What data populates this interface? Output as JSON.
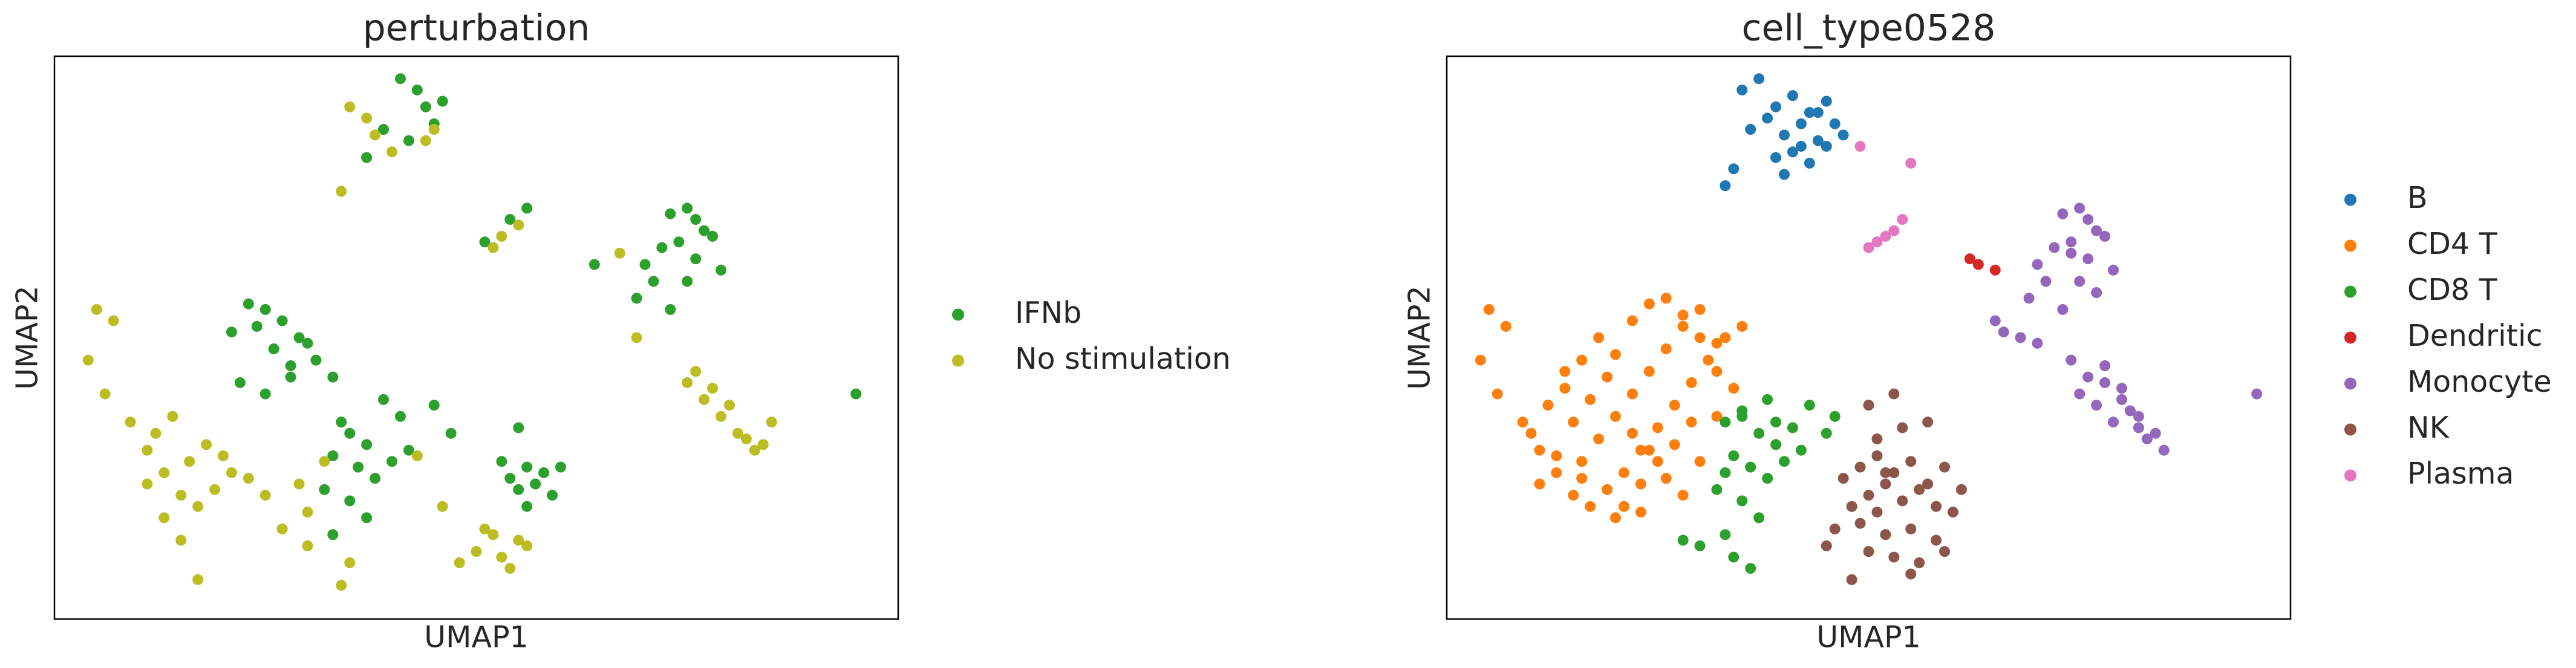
{
  "chart_data": [
    {
      "type": "scatter",
      "title": "perturbation",
      "xlabel": "UMAP1",
      "ylabel": "UMAP2",
      "xlim": [
        0,
        10
      ],
      "ylim": [
        0,
        10
      ],
      "grid": false,
      "legend": "right",
      "series": [
        {
          "name": "IFNb",
          "color": "#2ca02c",
          "x": [
            4.1,
            4.3,
            4.4,
            4.6,
            3.9,
            4.2,
            4.5,
            3.7,
            5.4,
            5.6,
            5.1,
            6.4,
            7.3,
            7.5,
            7.6,
            7.7,
            7.4,
            7.2,
            7.0,
            7.6,
            7.8,
            7.1,
            6.9,
            7.5,
            7.3,
            7.9,
            2.3,
            2.5,
            2.7,
            2.9,
            3.1,
            3.3,
            2.1,
            2.4,
            2.6,
            2.8,
            3.0,
            2.2,
            2.5,
            2.8,
            3.4,
            3.5,
            3.7,
            3.3,
            3.6,
            3.8,
            4.0,
            4.2,
            3.2,
            3.5,
            3.7,
            3.3,
            5.4,
            5.6,
            5.8,
            5.5,
            5.7,
            5.9,
            5.3,
            5.6,
            6.0,
            5.5,
            4.1,
            4.5,
            4.7,
            3.9,
            9.5
          ],
          "values": [
            9.6,
            9.4,
            9.1,
            9.2,
            8.7,
            8.5,
            8.8,
            8.2,
            7.1,
            7.3,
            6.7,
            6.3,
            7.2,
            7.3,
            7.1,
            6.9,
            6.7,
            6.6,
            6.3,
            6.4,
            6.8,
            6.0,
            5.7,
            6.0,
            5.5,
            6.2,
            5.6,
            5.5,
            5.3,
            5.0,
            4.6,
            4.3,
            5.1,
            5.2,
            4.8,
            4.5,
            4.9,
            4.2,
            4.0,
            4.3,
            3.5,
            3.3,
            3.1,
            2.9,
            2.7,
            2.5,
            2.8,
            3.0,
            2.3,
            2.1,
            1.8,
            1.5,
            2.5,
            2.7,
            2.6,
            2.3,
            2.4,
            2.2,
            2.8,
            2.0,
            2.7,
            3.4,
            3.6,
            3.8,
            3.3,
            3.9,
            4.0
          ]
        },
        {
          "name": "No stimulation",
          "color": "#bcbd22",
          "x": [
            3.5,
            3.7,
            3.8,
            4.0,
            4.4,
            4.5,
            3.4,
            5.2,
            5.3,
            5.5,
            6.7,
            6.9,
            7.5,
            7.7,
            7.9,
            8.1,
            8.3,
            8.5,
            7.8,
            8.0,
            8.2,
            7.6,
            8.4,
            0.5,
            0.7,
            0.4,
            0.6,
            0.9,
            1.1,
            1.3,
            1.5,
            1.7,
            1.9,
            2.1,
            1.2,
            1.4,
            1.6,
            1.8,
            2.0,
            1.1,
            1.3,
            1.5,
            1.7,
            2.3,
            2.5,
            2.7,
            3.0,
            3.2,
            4.8,
            5.0,
            5.2,
            5.4,
            5.6,
            5.1,
            5.3,
            5.5,
            3.4,
            3.5,
            3.0,
            2.9,
            4.3,
            4.6
          ],
          "values": [
            9.1,
            8.9,
            8.6,
            8.3,
            8.5,
            8.7,
            7.6,
            6.6,
            6.8,
            7.0,
            6.5,
            5.0,
            4.2,
            3.9,
            3.6,
            3.3,
            3.0,
            3.5,
            4.1,
            3.8,
            3.2,
            4.4,
            3.1,
            5.5,
            5.3,
            4.6,
            4.0,
            3.5,
            3.0,
            2.6,
            2.2,
            2.0,
            2.3,
            2.6,
            3.3,
            3.6,
            2.8,
            3.1,
            2.9,
            2.4,
            1.8,
            1.4,
            0.7,
            2.5,
            2.2,
            1.6,
            1.9,
            2.8,
            1.0,
            1.2,
            1.5,
            0.9,
            1.3,
            1.6,
            1.1,
            1.4,
            0.6,
            1.0,
            1.3,
            2.4,
            2.9,
            2.0
          ]
        }
      ]
    },
    {
      "type": "scatter",
      "title": "cell_type0528",
      "xlabel": "UMAP1",
      "ylabel": "UMAP2",
      "xlim": [
        0,
        10
      ],
      "ylim": [
        0,
        10
      ],
      "grid": false,
      "legend": "right",
      "series": [
        {
          "name": "B",
          "color": "#1f77b4",
          "x": [
            3.5,
            3.7,
            3.9,
            4.1,
            4.3,
            4.5,
            4.6,
            3.6,
            3.8,
            4.0,
            4.2,
            4.4,
            4.7,
            3.4,
            3.9,
            4.1,
            4.3,
            4.5,
            3.3,
            4.0,
            4.2,
            4.4
          ],
          "values": [
            9.4,
            9.6,
            9.1,
            9.3,
            9.0,
            9.2,
            8.8,
            8.7,
            8.9,
            8.6,
            8.4,
            8.5,
            8.6,
            8.0,
            8.2,
            8.3,
            8.1,
            8.4,
            7.7,
            7.9,
            8.8,
            9.0
          ]
        },
        {
          "name": "CD4 T",
          "color": "#ff7f0e",
          "x": [
            0.5,
            0.7,
            0.4,
            0.6,
            0.9,
            1.1,
            1.3,
            1.5,
            1.7,
            1.9,
            2.1,
            2.3,
            2.5,
            2.7,
            2.9,
            3.1,
            3.3,
            3.5,
            1.0,
            1.2,
            1.4,
            1.6,
            1.8,
            2.0,
            2.2,
            2.4,
            2.6,
            2.8,
            3.0,
            3.2,
            1.1,
            1.3,
            1.5,
            1.7,
            1.9,
            2.1,
            2.3,
            2.5,
            2.7,
            2.9,
            1.6,
            1.8,
            2.0,
            2.2,
            2.4,
            2.6,
            2.8,
            3.0,
            3.2,
            3.4,
            2.2,
            2.4,
            2.6,
            2.8,
            3.0,
            3.2,
            1.4,
            1.6,
            2.0,
            2.3
          ],
          "values": [
            5.5,
            5.2,
            4.6,
            4.0,
            3.5,
            3.0,
            2.6,
            2.2,
            2.0,
            2.3,
            2.6,
            3.0,
            3.4,
            3.8,
            4.2,
            4.6,
            5.0,
            5.2,
            3.3,
            3.8,
            4.1,
            2.8,
            3.2,
            3.6,
            4.0,
            4.4,
            4.8,
            5.2,
            5.5,
            4.9,
            2.4,
            2.9,
            3.5,
            3.9,
            4.3,
            2.0,
            2.4,
            2.8,
            3.1,
            3.5,
            4.6,
            5.0,
            4.7,
            5.3,
            5.6,
            5.7,
            5.4,
            5.0,
            4.4,
            4.1,
            3.3,
            3.0,
            2.5,
            2.2,
            2.8,
            3.6,
            4.4,
            2.5,
            1.8,
            1.9
          ]
        },
        {
          "name": "CD8 T",
          "color": "#2ca02c",
          "x": [
            3.3,
            3.5,
            3.7,
            3.9,
            4.1,
            3.4,
            3.6,
            3.8,
            4.0,
            4.2,
            3.2,
            3.5,
            3.7,
            3.3,
            3.0,
            2.8,
            3.4,
            3.6,
            4.5,
            4.6,
            4.3,
            3.8,
            3.5,
            3.3,
            3.9
          ],
          "values": [
            3.5,
            3.7,
            3.3,
            3.1,
            3.4,
            2.9,
            2.7,
            2.5,
            2.8,
            3.0,
            2.3,
            2.1,
            1.8,
            1.5,
            1.3,
            1.4,
            1.1,
            0.9,
            3.3,
            3.6,
            3.8,
            3.9,
            3.6,
            2.6,
            3.5
          ]
        },
        {
          "name": "Dendritic",
          "color": "#d62728",
          "x": [
            6.2,
            6.3,
            6.5
          ],
          "values": [
            6.4,
            6.3,
            6.2
          ]
        },
        {
          "name": "Monocyte",
          "color": "#9467bd",
          "x": [
            7.3,
            7.5,
            7.6,
            7.7,
            7.4,
            7.2,
            7.0,
            7.6,
            7.8,
            7.1,
            6.9,
            7.5,
            7.3,
            7.9,
            6.8,
            6.6,
            6.5,
            7.0,
            7.4,
            7.6,
            7.8,
            8.0,
            8.2,
            8.4,
            7.7,
            7.9,
            8.1,
            8.3,
            7.5,
            7.8,
            8.0,
            8.2,
            8.5,
            9.6,
            7.7,
            7.4
          ],
          "values": [
            7.2,
            7.3,
            7.1,
            6.9,
            6.7,
            6.6,
            6.3,
            6.4,
            6.8,
            6.0,
            5.7,
            6.0,
            5.5,
            6.2,
            5.0,
            5.1,
            5.3,
            4.9,
            4.6,
            4.3,
            4.2,
            3.9,
            3.6,
            3.3,
            3.8,
            3.5,
            3.7,
            3.2,
            4.0,
            4.5,
            4.1,
            3.4,
            3.0,
            4.0,
            5.8,
            6.5
          ]
        },
        {
          "name": "NK",
          "color": "#8c564b",
          "x": [
            4.7,
            4.9,
            5.1,
            5.3,
            5.5,
            5.7,
            5.9,
            6.1,
            4.8,
            5.0,
            5.2,
            5.4,
            5.6,
            5.8,
            6.0,
            4.6,
            4.9,
            5.2,
            5.5,
            5.8,
            5.0,
            5.3,
            5.6,
            5.9,
            5.1,
            5.4,
            5.7,
            5.0,
            5.3,
            4.5,
            4.8,
            5.5,
            5.2,
            5.1
          ],
          "values": [
            2.5,
            2.7,
            2.9,
            2.6,
            2.8,
            2.4,
            2.7,
            2.3,
            2.0,
            2.2,
            2.4,
            2.1,
            2.3,
            2.0,
            1.9,
            1.6,
            1.7,
            1.5,
            1.6,
            1.4,
            1.2,
            1.1,
            1.0,
            1.2,
            3.2,
            3.4,
            3.5,
            3.8,
            4.0,
            1.3,
            0.7,
            0.8,
            2.6,
            1.9
          ]
        },
        {
          "name": "Plasma",
          "color": "#e377c2",
          "x": [
            4.9,
            5.5,
            5.1,
            5.2,
            5.3,
            5.4,
            5.0
          ],
          "values": [
            8.4,
            8.1,
            6.7,
            6.8,
            6.9,
            7.1,
            6.6
          ]
        }
      ]
    }
  ]
}
